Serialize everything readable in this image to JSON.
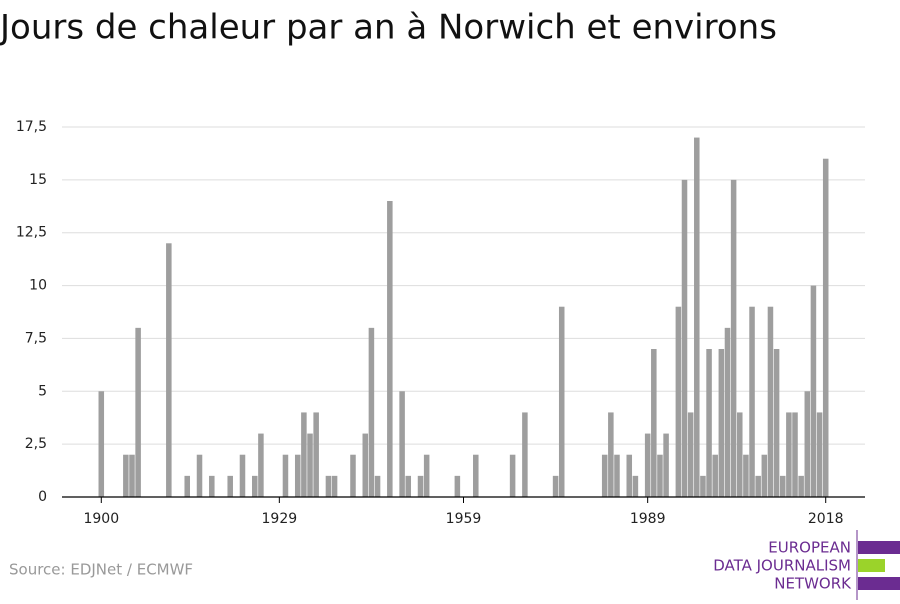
{
  "chart_data": {
    "type": "bar",
    "title": "Jours de chaleur par an à Norwich et environs",
    "source": "Source: EDJNet / ECMWF",
    "logo": [
      "EUROPEAN",
      "DATA JOURNALISM",
      "NETWORK"
    ],
    "color": "#9e9e9e",
    "grid": true,
    "x": [
      1900,
      1901,
      1902,
      1903,
      1904,
      1905,
      1906,
      1907,
      1908,
      1909,
      1910,
      1911,
      1912,
      1913,
      1914,
      1915,
      1916,
      1917,
      1918,
      1919,
      1920,
      1921,
      1922,
      1923,
      1924,
      1925,
      1926,
      1927,
      1928,
      1929,
      1930,
      1931,
      1932,
      1933,
      1934,
      1935,
      1936,
      1937,
      1938,
      1939,
      1940,
      1941,
      1942,
      1943,
      1944,
      1945,
      1946,
      1947,
      1948,
      1949,
      1950,
      1951,
      1952,
      1953,
      1954,
      1955,
      1956,
      1957,
      1958,
      1959,
      1960,
      1961,
      1962,
      1963,
      1964,
      1965,
      1966,
      1967,
      1968,
      1969,
      1970,
      1971,
      1972,
      1973,
      1974,
      1975,
      1976,
      1977,
      1978,
      1979,
      1980,
      1981,
      1982,
      1983,
      1984,
      1985,
      1986,
      1987,
      1988,
      1989,
      1990,
      1991,
      1992,
      1993,
      1994,
      1995,
      1996,
      1997,
      1998,
      1999,
      2000,
      2001,
      2002,
      2003,
      2004,
      2005,
      2006,
      2007,
      2008,
      2009,
      2010,
      2011,
      2012,
      2013,
      2014,
      2015,
      2016,
      2017,
      2018
    ],
    "values": [
      5,
      0,
      0,
      0,
      2,
      2,
      8,
      0,
      0,
      0,
      0,
      12,
      0,
      0,
      1,
      0,
      2,
      0,
      1,
      0,
      0,
      1,
      0,
      2,
      0,
      1,
      3,
      0,
      0,
      0,
      2,
      0,
      2,
      4,
      3,
      4,
      0,
      1,
      1,
      0,
      0,
      2,
      0,
      3,
      8,
      1,
      0,
      14,
      0,
      5,
      1,
      0,
      1,
      2,
      0,
      0,
      0,
      0,
      1,
      0,
      0,
      2,
      0,
      0,
      0,
      0,
      0,
      2,
      0,
      4,
      0,
      0,
      0,
      0,
      1,
      9,
      0,
      0,
      0,
      0,
      0,
      0,
      2,
      4,
      2,
      0,
      2,
      1,
      0,
      3,
      7,
      2,
      3,
      0,
      9,
      15,
      4,
      17,
      1,
      7,
      2,
      7,
      8,
      15,
      4,
      2,
      9,
      1,
      2,
      9,
      7,
      1,
      4,
      4,
      1,
      5,
      10,
      4,
      16
    ],
    "xlim": [
      1893.6,
      2024.4
    ],
    "xticks": [
      1900,
      1929,
      1959,
      1989,
      2018
    ],
    "ylim": [
      0,
      17.5
    ],
    "yticks": [
      0,
      {
        "value": 2.5,
        "label": "2,5"
      },
      5,
      {
        "value": 7.5,
        "label": "7,5"
      },
      10,
      {
        "value": 12.5,
        "label": "12,5"
      },
      15,
      {
        "value": 17.5,
        "label": "17,5"
      }
    ]
  }
}
